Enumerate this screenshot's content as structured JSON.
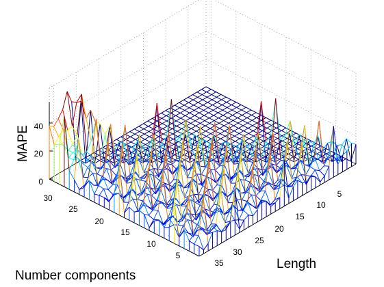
{
  "chart_data": {
    "type": "surface",
    "xlabel": "Length",
    "ylabel": "Number components",
    "zlabel": "MAPE",
    "x_ticks": [
      "5",
      "10",
      "15",
      "20",
      "25",
      "30",
      "35"
    ],
    "y_ticks": [
      "5",
      "10",
      "15",
      "20",
      "25",
      "30"
    ],
    "z_ticks": [
      "0",
      "20",
      "40"
    ],
    "xlim": [
      1,
      36
    ],
    "ylim": [
      1,
      31
    ],
    "zlim": [
      0,
      55
    ],
    "grid": true,
    "colormap": "jet",
    "colors": {
      "mesh_low": "#00008b",
      "mesh_high": "#c80000"
    }
  }
}
